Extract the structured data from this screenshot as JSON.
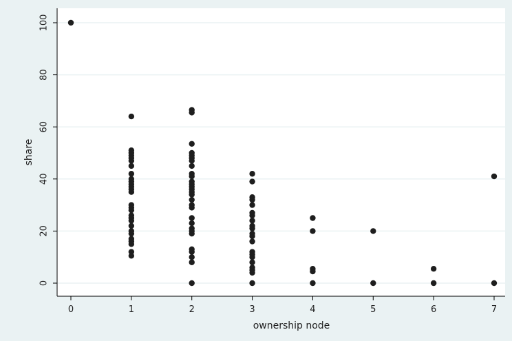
{
  "chart_data": {
    "type": "scatter",
    "title": "",
    "xlabel": "ownership node",
    "ylabel": "share",
    "xlim": [
      -0.2,
      7.2
    ],
    "ylim": [
      -5,
      105
    ],
    "xticks": [
      0,
      1,
      2,
      3,
      4,
      5,
      6,
      7
    ],
    "yticks": [
      0,
      20,
      40,
      60,
      80,
      100
    ],
    "grid": "horizontal",
    "colors": {
      "background": "#eaf2f3",
      "plot": "#ffffff",
      "marker": "#1e1e1e",
      "grid": "#eaf2f3",
      "axis": "#000000"
    },
    "points": [
      {
        "x": 0,
        "y": 100
      },
      {
        "x": 1,
        "y": 64
      },
      {
        "x": 1,
        "y": 51
      },
      {
        "x": 1,
        "y": 50
      },
      {
        "x": 1,
        "y": 49
      },
      {
        "x": 1,
        "y": 48
      },
      {
        "x": 1,
        "y": 47
      },
      {
        "x": 1,
        "y": 45
      },
      {
        "x": 1,
        "y": 42
      },
      {
        "x": 1,
        "y": 40
      },
      {
        "x": 1,
        "y": 39
      },
      {
        "x": 1,
        "y": 38
      },
      {
        "x": 1,
        "y": 37
      },
      {
        "x": 1,
        "y": 36
      },
      {
        "x": 1,
        "y": 35
      },
      {
        "x": 1,
        "y": 30
      },
      {
        "x": 1,
        "y": 29
      },
      {
        "x": 1,
        "y": 28
      },
      {
        "x": 1,
        "y": 26
      },
      {
        "x": 1,
        "y": 25
      },
      {
        "x": 1,
        "y": 24
      },
      {
        "x": 1,
        "y": 22
      },
      {
        "x": 1,
        "y": 20
      },
      {
        "x": 1,
        "y": 19
      },
      {
        "x": 1,
        "y": 17
      },
      {
        "x": 1,
        "y": 16
      },
      {
        "x": 1,
        "y": 15
      },
      {
        "x": 1,
        "y": 12
      },
      {
        "x": 1,
        "y": 10.5
      },
      {
        "x": 2,
        "y": 66.5
      },
      {
        "x": 2,
        "y": 65.5
      },
      {
        "x": 2,
        "y": 53.5
      },
      {
        "x": 2,
        "y": 50
      },
      {
        "x": 2,
        "y": 49
      },
      {
        "x": 2,
        "y": 48
      },
      {
        "x": 2,
        "y": 47
      },
      {
        "x": 2,
        "y": 45
      },
      {
        "x": 2,
        "y": 42
      },
      {
        "x": 2,
        "y": 41
      },
      {
        "x": 2,
        "y": 39
      },
      {
        "x": 2,
        "y": 38
      },
      {
        "x": 2,
        "y": 37
      },
      {
        "x": 2,
        "y": 36
      },
      {
        "x": 2,
        "y": 35
      },
      {
        "x": 2,
        "y": 34
      },
      {
        "x": 2,
        "y": 32
      },
      {
        "x": 2,
        "y": 30
      },
      {
        "x": 2,
        "y": 29
      },
      {
        "x": 2,
        "y": 25
      },
      {
        "x": 2,
        "y": 23
      },
      {
        "x": 2,
        "y": 21
      },
      {
        "x": 2,
        "y": 20
      },
      {
        "x": 2,
        "y": 19
      },
      {
        "x": 2,
        "y": 13
      },
      {
        "x": 2,
        "y": 12
      },
      {
        "x": 2,
        "y": 10
      },
      {
        "x": 2,
        "y": 8
      },
      {
        "x": 2,
        "y": 0
      },
      {
        "x": 3,
        "y": 42
      },
      {
        "x": 3,
        "y": 39
      },
      {
        "x": 3,
        "y": 33
      },
      {
        "x": 3,
        "y": 32
      },
      {
        "x": 3,
        "y": 30
      },
      {
        "x": 3,
        "y": 27
      },
      {
        "x": 3,
        "y": 26
      },
      {
        "x": 3,
        "y": 24
      },
      {
        "x": 3,
        "y": 22
      },
      {
        "x": 3,
        "y": 21
      },
      {
        "x": 3,
        "y": 19
      },
      {
        "x": 3,
        "y": 18
      },
      {
        "x": 3,
        "y": 16
      },
      {
        "x": 3,
        "y": 12
      },
      {
        "x": 3,
        "y": 11
      },
      {
        "x": 3,
        "y": 10
      },
      {
        "x": 3,
        "y": 8
      },
      {
        "x": 3,
        "y": 6
      },
      {
        "x": 3,
        "y": 5
      },
      {
        "x": 3,
        "y": 4
      },
      {
        "x": 3,
        "y": 0
      },
      {
        "x": 4,
        "y": 25
      },
      {
        "x": 4,
        "y": 20
      },
      {
        "x": 4,
        "y": 5.5
      },
      {
        "x": 4,
        "y": 4.5
      },
      {
        "x": 4,
        "y": 0
      },
      {
        "x": 5,
        "y": 20
      },
      {
        "x": 5,
        "y": 0
      },
      {
        "x": 6,
        "y": 5.5
      },
      {
        "x": 6,
        "y": 0
      },
      {
        "x": 7,
        "y": 41
      },
      {
        "x": 7,
        "y": 0
      }
    ]
  }
}
